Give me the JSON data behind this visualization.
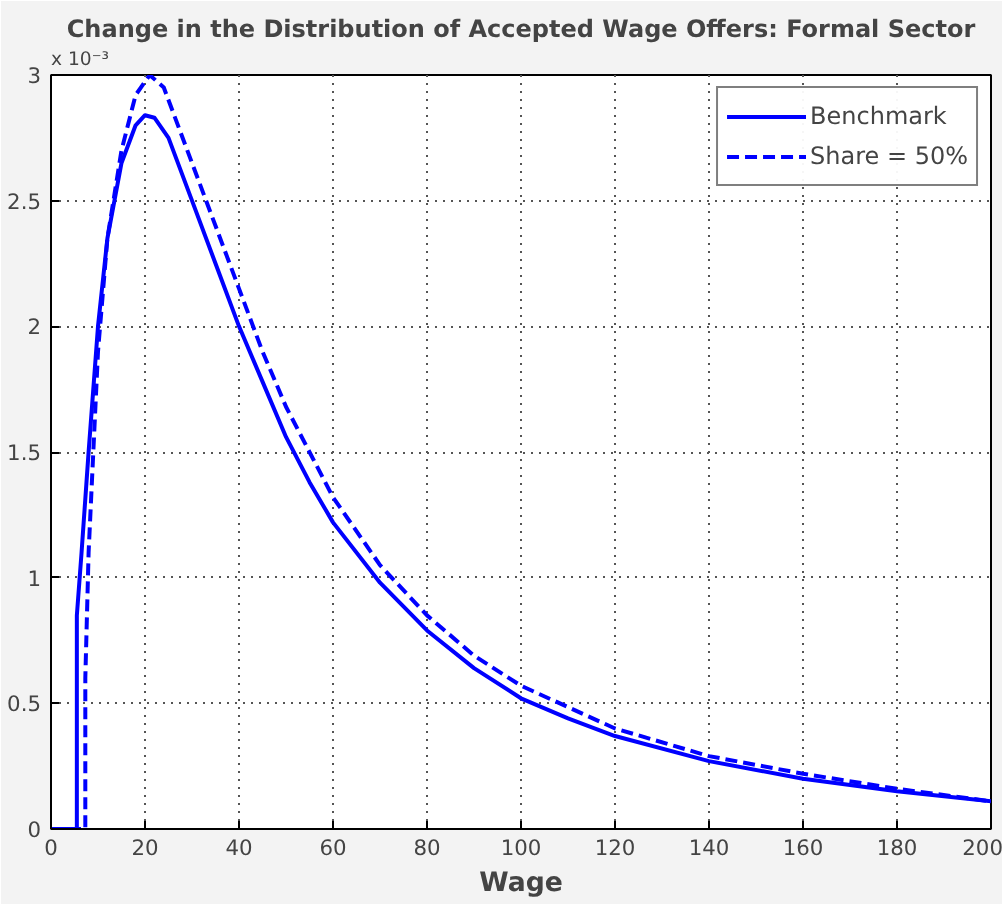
{
  "chart_data": {
    "type": "line",
    "title": "Change in the Distribution of Accepted Wage Offers: Formal Sector",
    "xlabel": "Wage",
    "annotations": [
      "x 10⁻³"
    ],
    "series": [
      {
        "name": "Benchmark",
        "color": "#0000ff",
        "line_style": "solid",
        "x": [
          0,
          5.5,
          5.5,
          6.5,
          8,
          10,
          12,
          15,
          18,
          20,
          22,
          25,
          30,
          35,
          40,
          45,
          50,
          55,
          60,
          70,
          80,
          90,
          100,
          110,
          120,
          140,
          160,
          180,
          200
        ],
        "values": [
          0,
          0,
          0.85,
          1.1,
          1.5,
          2.0,
          2.35,
          2.65,
          2.8,
          2.84,
          2.83,
          2.75,
          2.5,
          2.25,
          2.0,
          1.78,
          1.56,
          1.38,
          1.22,
          0.98,
          0.79,
          0.64,
          0.52,
          0.44,
          0.37,
          0.27,
          0.2,
          0.15,
          0.11
        ]
      },
      {
        "name": "Share = 50%",
        "color": "#0000ff",
        "line_style": "dashed",
        "x": [
          0,
          7.3,
          7.3,
          8,
          10,
          12,
          15,
          18,
          21,
          24,
          30,
          35,
          40,
          45,
          50,
          60,
          70,
          80,
          90,
          100,
          120,
          140,
          160,
          180,
          200
        ],
        "values": [
          0,
          0,
          0.6,
          1.1,
          1.9,
          2.35,
          2.7,
          2.92,
          3.0,
          2.95,
          2.65,
          2.4,
          2.15,
          1.9,
          1.68,
          1.32,
          1.05,
          0.85,
          0.69,
          0.57,
          0.4,
          0.29,
          0.22,
          0.16,
          0.11
        ]
      }
    ],
    "xlim": [
      0,
      200
    ],
    "ylim": [
      0,
      3
    ],
    "xticks": [
      0,
      20,
      40,
      60,
      80,
      100,
      120,
      140,
      160,
      180,
      200
    ],
    "yticks": [
      0,
      0.5,
      1,
      1.5,
      2,
      2.5,
      3
    ],
    "grid": true,
    "legend": "top right",
    "marker": "none"
  }
}
